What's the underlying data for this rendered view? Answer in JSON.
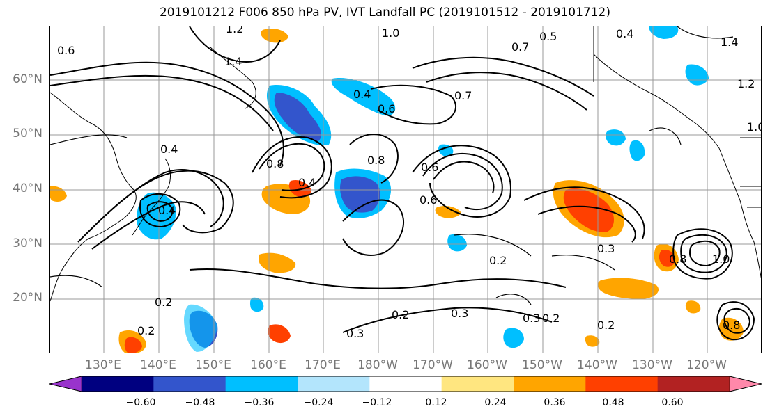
{
  "title": "2019101212 F006 850 hPa PV, IVT Landfall PC (2019101512 - 2019101712)",
  "lat_labels": [
    "60°N",
    "50°N",
    "40°N",
    "30°N",
    "20°N"
  ],
  "lon_labels": [
    "130°E",
    "140°E",
    "150°E",
    "160°E",
    "170°E",
    "180°W",
    "170°W",
    "160°W",
    "150°W",
    "140°W",
    "130°W",
    "120°W"
  ],
  "colorbar": {
    "tick_labels": [
      "−0.60",
      "−0.48",
      "−0.36",
      "−0.24",
      "−0.12",
      "0.12",
      "0.24",
      "0.36",
      "0.48",
      "0.60"
    ],
    "colors": [
      "#9933cc",
      "#000080",
      "#3355cc",
      "#00bfff",
      "#b3e5fc",
      "#ffffff",
      "#ffe680",
      "#ffa500",
      "#ff4000",
      "#b22222",
      "#ff88aa"
    ]
  },
  "contour_labels": [
    "1.2",
    "1.4",
    "1.0",
    "0.6",
    "0.5",
    "0.4",
    "0.7",
    "0.4",
    "0.6",
    "0.8",
    "0.8",
    "0.4",
    "0.4",
    "0.6",
    "0.7",
    "1.4",
    "1.2",
    "1.0",
    "0.6",
    "0.8",
    "0.4",
    "0.2",
    "0.2",
    "0.3",
    "0.2",
    "0.3",
    "0.2",
    "0.3",
    "0.2",
    "0.2",
    "0.3",
    "1.0",
    "0.8"
  ],
  "colors": {
    "positive_light": "#ffe680",
    "positive_mid": "#ffa500",
    "positive_strong": "#ff4000",
    "negative_light": "#b3e5fc",
    "negative_mid": "#00bfff",
    "negative_strong": "#3355cc",
    "grid": "#999999",
    "axis_text": "#777777"
  }
}
